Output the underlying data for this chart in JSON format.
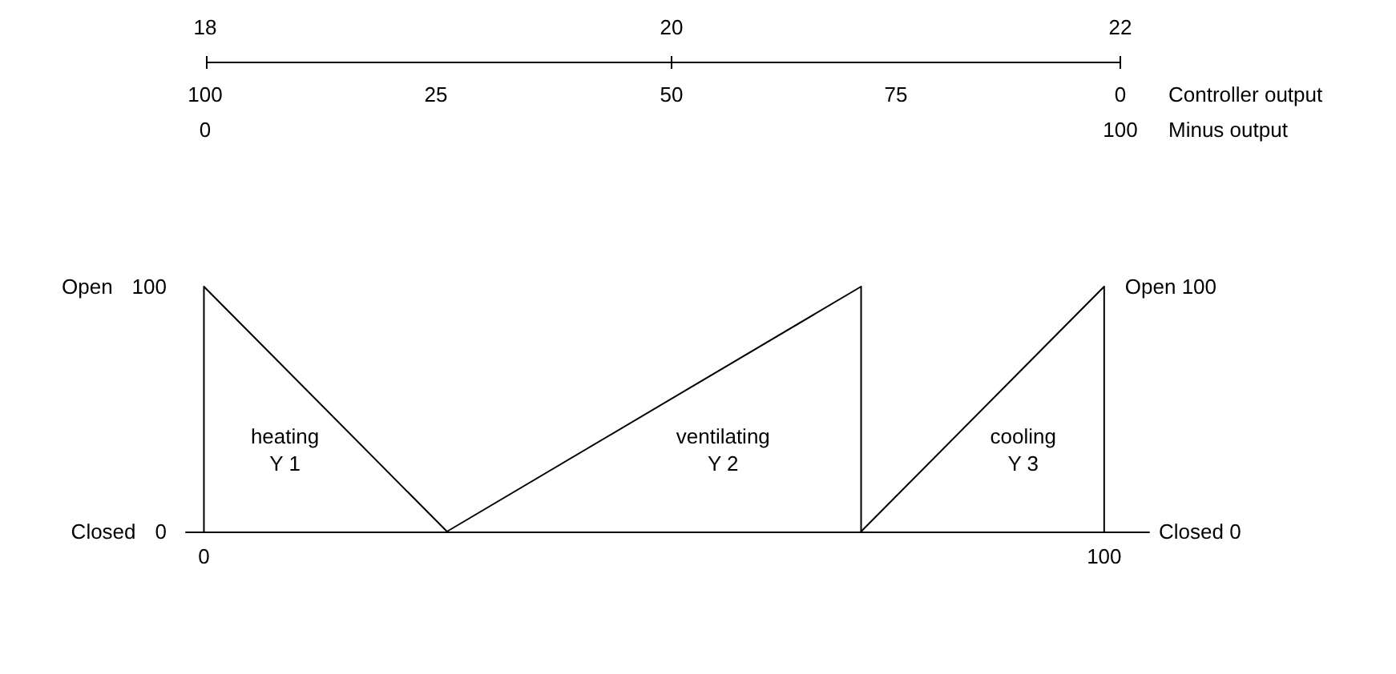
{
  "chart_data": [
    {
      "type": "other",
      "annotations": [
        "18",
        "20",
        "22",
        "100",
        "25",
        "50",
        "75",
        "0",
        "Controller output",
        "0",
        "100",
        "Minus output"
      ]
    },
    {
      "type": "line",
      "series": [
        {
          "name": "heating\nY 1",
          "color": "#000000",
          "x": [
            0,
            0,
            27
          ],
          "values": [
            0,
            100,
            0
          ]
        },
        {
          "name": "ventilating\nY 2",
          "color": "#000000",
          "x": [
            27,
            73,
            73
          ],
          "values": [
            0,
            100,
            0
          ]
        },
        {
          "name": "cooling\nY 3",
          "color": "#000000",
          "x": [
            73,
            100,
            100
          ],
          "values": [
            0,
            100,
            0
          ]
        }
      ],
      "xlim": [
        -2,
        105
      ],
      "xticks": [
        0,
        100
      ],
      "ylim": [
        0,
        100
      ],
      "yticks": [
        0,
        100
      ],
      "annotations": [
        "Open",
        "Closed",
        {
          "text": "Open 100",
          "x": 100,
          "y": 100
        },
        "Closed 0"
      ],
      "grid": false,
      "legend": false,
      "marker": "none",
      "line_style": "solid"
    }
  ]
}
